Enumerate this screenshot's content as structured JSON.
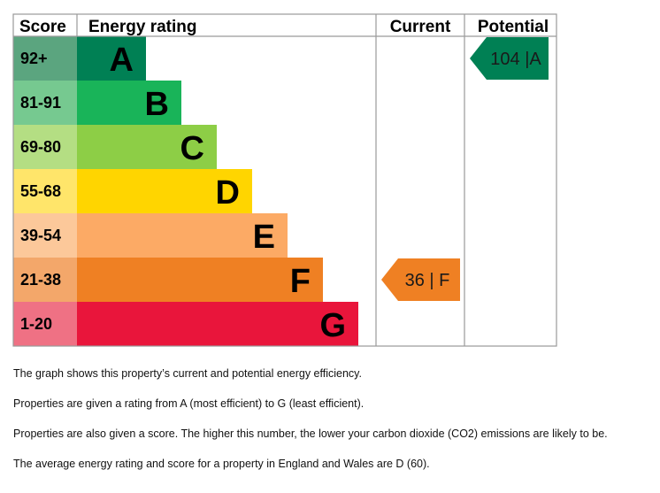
{
  "chart_data": {
    "type": "bar",
    "title": "Energy rating",
    "headers": {
      "score": "Score",
      "rating": "Energy rating",
      "current": "Current",
      "potential": "Potential"
    },
    "bands": [
      {
        "letter": "A",
        "range": "92+",
        "min": 92,
        "max": null,
        "color": "#008054",
        "score_bg": "#5ba57f"
      },
      {
        "letter": "B",
        "range": "81-91",
        "min": 81,
        "max": 91,
        "color": "#19b459",
        "score_bg": "#76c990"
      },
      {
        "letter": "C",
        "range": "69-80",
        "min": 69,
        "max": 80,
        "color": "#8dce46",
        "score_bg": "#b4de83"
      },
      {
        "letter": "D",
        "range": "55-68",
        "min": 55,
        "max": 68,
        "color": "#ffd500",
        "score_bg": "#ffe56a"
      },
      {
        "letter": "E",
        "range": "39-54",
        "min": 39,
        "max": 54,
        "color": "#fcaa65",
        "score_bg": "#fcc89a"
      },
      {
        "letter": "F",
        "range": "21-38",
        "min": 21,
        "max": 38,
        "color": "#ef8023",
        "score_bg": "#f3a76a"
      },
      {
        "letter": "G",
        "range": "1-20",
        "min": 1,
        "max": 20,
        "color": "#e9153b",
        "score_bg": "#ef7184"
      }
    ],
    "current": {
      "score": 36,
      "band": "F",
      "label": "36 |  F",
      "color": "#ef8023"
    },
    "potential": {
      "score": 104,
      "band": "A",
      "label": "104 |A",
      "color": "#008054"
    }
  },
  "notes": [
    "The graph shows this property’s current and potential energy efficiency.",
    "Properties are given a rating from A (most efficient) to G (least efficient).",
    "Properties are also given a score. The higher this number, the lower your carbon dioxide (CO2) emissions are likely to be.",
    "The average energy rating and score for a property in England and Wales are D (60)."
  ]
}
